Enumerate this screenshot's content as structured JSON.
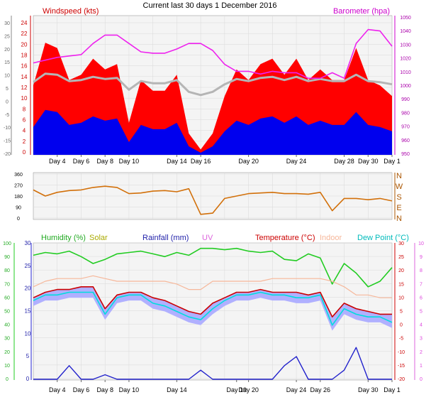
{
  "title": "Current last 30 days 1 December 2016",
  "panels": {
    "wind": {
      "left_label": "Windspeed (kts)",
      "right_label": "Barometer (hpa)",
      "x_ticks": [
        "Day 4",
        "Day 6",
        "Day 8",
        "Day 10",
        "Day 14",
        "Day 16",
        "Day 20",
        "Day 24",
        "Day 28",
        "Day 30",
        "Day 1"
      ],
      "y_outer_ticks": [
        "30",
        "25",
        "20",
        "15",
        "10",
        "5",
        "0",
        "-5",
        "-10",
        "-15",
        "-20"
      ],
      "y_inner_ticks": [
        "24",
        "22",
        "20",
        "18",
        "16",
        "14",
        "12",
        "10",
        "8",
        "6",
        "4",
        "2",
        "0"
      ],
      "y_right_ticks": [
        "1050",
        "1040",
        "1030",
        "1020",
        "1010",
        "1000",
        "990",
        "980",
        "970",
        "960",
        "950"
      ]
    },
    "direction": {
      "y_left_ticks": [
        "360",
        "270",
        "180",
        "90",
        "0"
      ],
      "y_right_labels": [
        "N",
        "W",
        "S",
        "E",
        "N"
      ]
    },
    "weather": {
      "labels": [
        "Humidity (%)",
        "Solar",
        "Rainfall (mm)",
        "UV",
        "Temperature (°C)",
        "Indoor",
        "Dew Point (°C)"
      ],
      "x_ticks": [
        "Day 4",
        "Day 6",
        "Day 8",
        "Day 10",
        "Day 14",
        "Day 19",
        "Day 20",
        "Day 24",
        "Day 26",
        "Day 30",
        "Day 1"
      ],
      "y_humidity_ticks": [
        "100",
        "90",
        "80",
        "70",
        "60",
        "50",
        "40",
        "30",
        "20",
        "10",
        "0"
      ],
      "y_rain_ticks": [
        "30",
        "25",
        "20",
        "15",
        "10",
        "5",
        "0"
      ],
      "y_temp_ticks": [
        "30",
        "25",
        "20",
        "15",
        "10",
        "5",
        "0",
        "-5",
        "-10",
        "-15",
        "-20"
      ],
      "y_uv_ticks": [
        "10",
        "9",
        "8",
        "7",
        "6",
        "5",
        "4",
        "3",
        "2",
        "1",
        "0"
      ]
    }
  },
  "colors": {
    "bg": "#f4f4f4",
    "grid": "#d9d9d9",
    "wind_gust": "#ff0000",
    "wind_avg": "#0000ee",
    "wind_dir_line": "#b5b5b5",
    "barometer": "#ee22ee",
    "direction": "#d2700a",
    "humidity": "#22cc22",
    "solar": "#aaaa00",
    "rainfall": "#2222cc",
    "uv": "#dd44dd",
    "temperature": "#cc0000",
    "indoor": "#f6b79a",
    "dewpoint": "#00dddd",
    "temp_band": "#b0b0ff"
  },
  "chart_data": [
    {
      "type": "area",
      "title": "Current last 30 days 1 December 2016",
      "ylabel": "Windspeed (kts)",
      "y2label": "Barometer (hpa)",
      "ylim": [
        0,
        25
      ],
      "y2lim": [
        950,
        1050
      ],
      "x_days": [
        2,
        3,
        4,
        5,
        6,
        7,
        8,
        9,
        10,
        11,
        12,
        13,
        14,
        15,
        16,
        17,
        18,
        19,
        20,
        21,
        22,
        23,
        24,
        25,
        26,
        27,
        28,
        29,
        30,
        31,
        32
      ],
      "series": [
        {
          "name": "Windspeed (kts)",
          "values": [
            13,
            21,
            20,
            14,
            15,
            18,
            16,
            17,
            6,
            14,
            12,
            12,
            15,
            4,
            1,
            4,
            11,
            16,
            14,
            17,
            18,
            15,
            18,
            14,
            16,
            14,
            14,
            20,
            14,
            13,
            11
          ]
        },
        {
          "name": "Barometer (hpa)",
          "values": [
            1016,
            1018,
            1020,
            1021,
            1022,
            1030,
            1036,
            1036,
            1030,
            1024,
            1023,
            1023,
            1026,
            1030,
            1030,
            1025,
            1015,
            1010,
            1010,
            1008,
            1010,
            1009,
            1009,
            1005,
            1005,
            1009,
            1005,
            1030,
            1040,
            1039,
            1028
          ]
        }
      ]
    },
    {
      "type": "line",
      "ylabel": "Wind direction",
      "ylim": [
        0,
        360
      ],
      "x_days": [
        2,
        3,
        4,
        5,
        6,
        7,
        8,
        9,
        10,
        11,
        12,
        13,
        14,
        15,
        16,
        17,
        18,
        19,
        20,
        21,
        22,
        23,
        24,
        25,
        26,
        27,
        28,
        29,
        30,
        31,
        32
      ],
      "series": [
        {
          "name": "Wind direction",
          "values": [
            230,
            180,
            210,
            225,
            230,
            250,
            260,
            250,
            200,
            205,
            220,
            225,
            215,
            240,
            30,
            40,
            160,
            180,
            200,
            205,
            210,
            200,
            200,
            195,
            210,
            60,
            160,
            160,
            150,
            160,
            140
          ]
        }
      ]
    },
    {
      "type": "line",
      "ylabel": "Humidity (%)",
      "y2label": "Temperature (°C)",
      "ylim": [
        0,
        100
      ],
      "y2lim": [
        -20,
        30
      ],
      "x_days": [
        2,
        3,
        4,
        5,
        6,
        7,
        8,
        9,
        10,
        11,
        12,
        13,
        14,
        15,
        16,
        17,
        18,
        19,
        20,
        21,
        22,
        23,
        24,
        25,
        26,
        27,
        28,
        29,
        30,
        31,
        32
      ],
      "series": [
        {
          "name": "Humidity (%)",
          "values": [
            91,
            93,
            92,
            94,
            90,
            85,
            88,
            92,
            93,
            94,
            92,
            90,
            93,
            91,
            96,
            96,
            95,
            96,
            94,
            93,
            94,
            88,
            87,
            92,
            89,
            70,
            85,
            78,
            68,
            72,
            82
          ]
        },
        {
          "name": "Temperature (°C)",
          "values": [
            10,
            12,
            13,
            13,
            14,
            14,
            6,
            11,
            12,
            12,
            10,
            9,
            7,
            5,
            4,
            8,
            10,
            12,
            12,
            13,
            12,
            12,
            12,
            11,
            12,
            3,
            8,
            6,
            5,
            4,
            4
          ]
        },
        {
          "name": "Dew Point (°C)",
          "values": [
            9,
            11,
            11,
            12,
            12,
            12,
            4,
            10,
            11,
            11,
            8,
            7,
            5,
            3,
            2,
            6,
            9,
            11,
            11,
            12,
            11,
            11,
            10,
            10,
            11,
            0,
            6,
            4,
            3,
            3,
            1
          ]
        },
        {
          "name": "Indoor",
          "values": [
            14,
            16,
            17,
            17,
            17,
            18,
            17,
            16,
            16,
            16,
            16,
            16,
            15,
            13,
            13,
            16,
            16,
            16,
            16,
            16,
            17,
            17,
            17,
            17,
            17,
            16,
            14,
            11,
            11,
            10,
            10
          ]
        },
        {
          "name": "Rainfall (mm)",
          "values": [
            0,
            0,
            0,
            3,
            0,
            0,
            1,
            0,
            0,
            0,
            0,
            0,
            0,
            0,
            2,
            0,
            0,
            0,
            0,
            0,
            0,
            3,
            5,
            0,
            0,
            0,
            2,
            7,
            0,
            0,
            0
          ]
        }
      ]
    }
  ]
}
